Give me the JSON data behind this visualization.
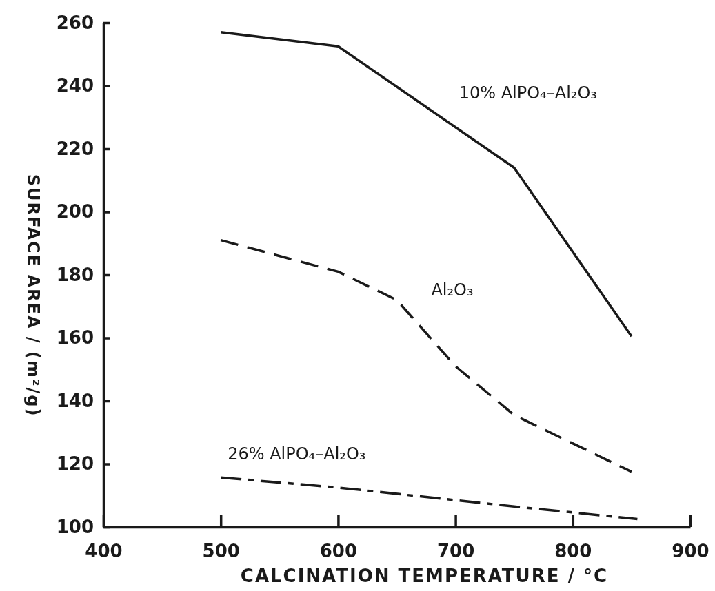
{
  "chart_data": {
    "type": "line",
    "xlabel": "CALCINATION TEMPERATURE / °C",
    "ylabel": "SURFACE AREA / (m²/g)",
    "xlim": [
      400,
      900
    ],
    "xticks": [
      400,
      500,
      600,
      700,
      800,
      900
    ],
    "ylim": [
      100,
      260
    ],
    "yticks": [
      100,
      120,
      140,
      160,
      180,
      200,
      220,
      240,
      260
    ],
    "grid": false,
    "legend": false,
    "marker": "none",
    "series": [
      {
        "name": "10% AlPO₄–Al₂O₃",
        "color": "#1a1a1a",
        "line_style": "solid",
        "x": [
          500,
          600,
          750,
          850
        ],
        "values": [
          257,
          252.5,
          214,
          160.5
        ]
      },
      {
        "name": "Al₂O₃",
        "color": "#1a1a1a",
        "line_style": "dashed",
        "x": [
          500,
          600,
          650,
          700,
          750,
          850
        ],
        "values": [
          191,
          181,
          172,
          151,
          135.5,
          117.5
        ]
      },
      {
        "name": "26% AlPO₄–Al₂O₃",
        "color": "#1a1a1a",
        "line_style": "dashdot",
        "x": [
          500,
          600,
          750,
          855
        ],
        "values": [
          115.7,
          112.5,
          106.5,
          102.5
        ]
      }
    ]
  }
}
